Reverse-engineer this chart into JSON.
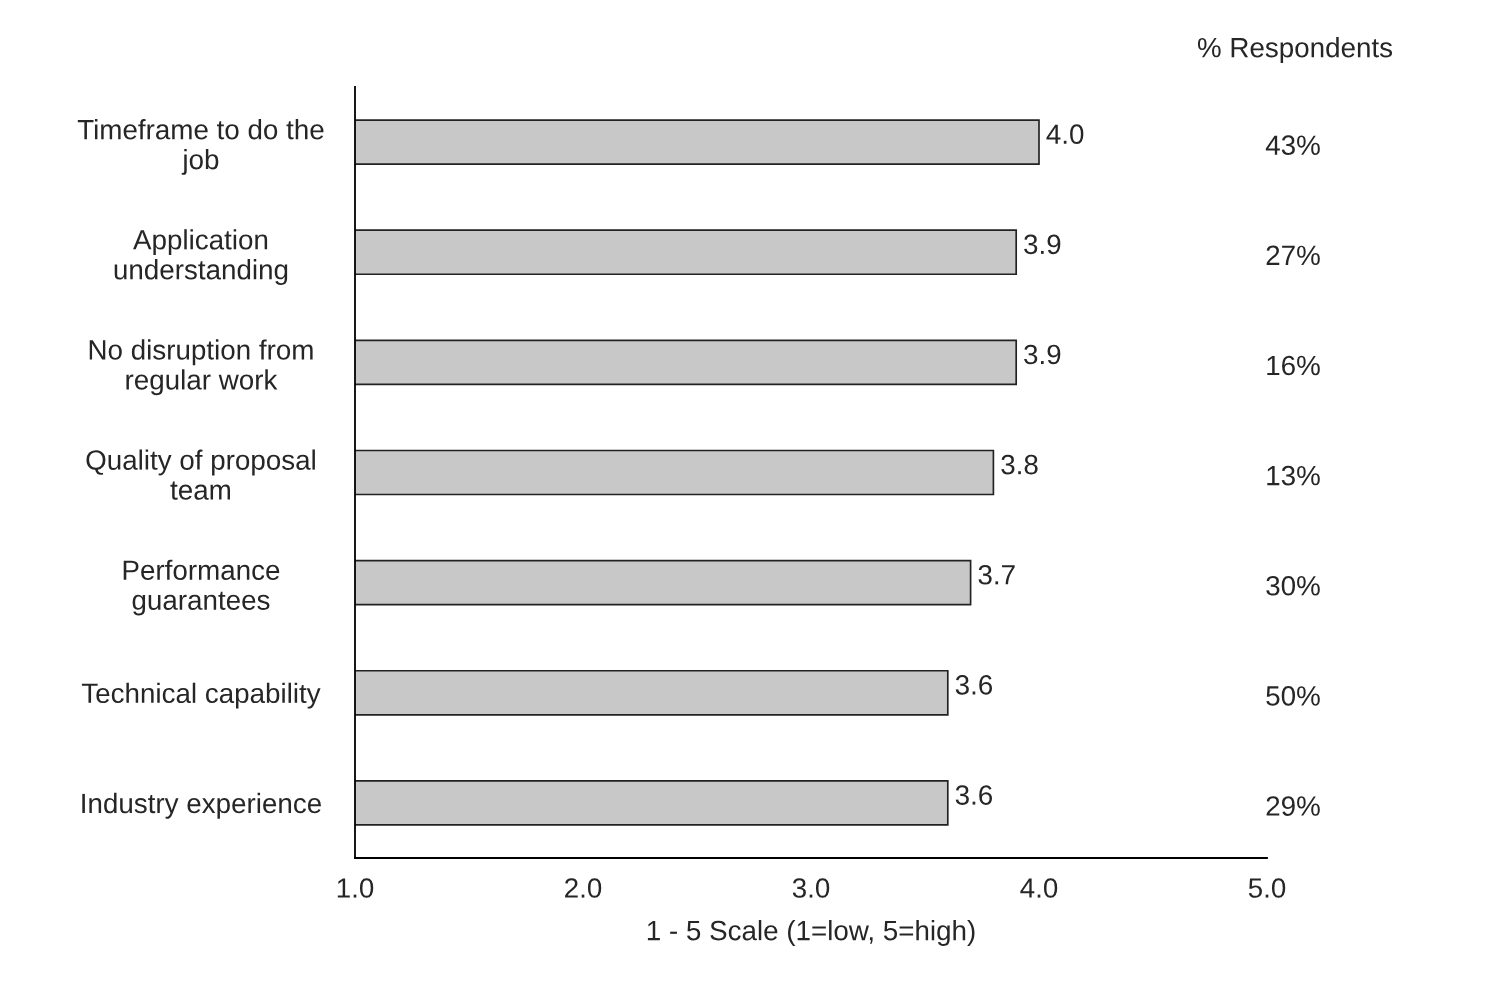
{
  "chart_data": {
    "type": "bar",
    "orientation": "horizontal",
    "categories": [
      "Timeframe to do the\njob",
      "Application\nunderstanding",
      "No disruption from\nregular work",
      "Quality of proposal\nteam",
      "Performance\nguarantees",
      "Technical capability",
      "Industry experience"
    ],
    "values": [
      4.0,
      3.9,
      3.9,
      3.8,
      3.7,
      3.6,
      3.6
    ],
    "color": "#c8c8c8",
    "xlim": [
      1,
      5
    ],
    "xticks": [
      {
        "value": 1,
        "label": "1.0"
      },
      {
        "value": 2,
        "label": "2.0"
      },
      {
        "value": 3,
        "label": "3.0"
      },
      {
        "value": 4,
        "label": "4.0"
      },
      {
        "value": 5,
        "label": "5.0"
      }
    ],
    "xlabel": "1 - 5 Scale (1=low, 5=high)",
    "value_labels": [
      "4.0",
      "3.9",
      "3.9",
      "3.8",
      "3.7",
      "3.6",
      "3.6"
    ],
    "grid": false,
    "legend": false,
    "annotations": [
      "% Respondents",
      "43%",
      "27%",
      "16%",
      "13%",
      "30%",
      "50%",
      "29%"
    ]
  }
}
